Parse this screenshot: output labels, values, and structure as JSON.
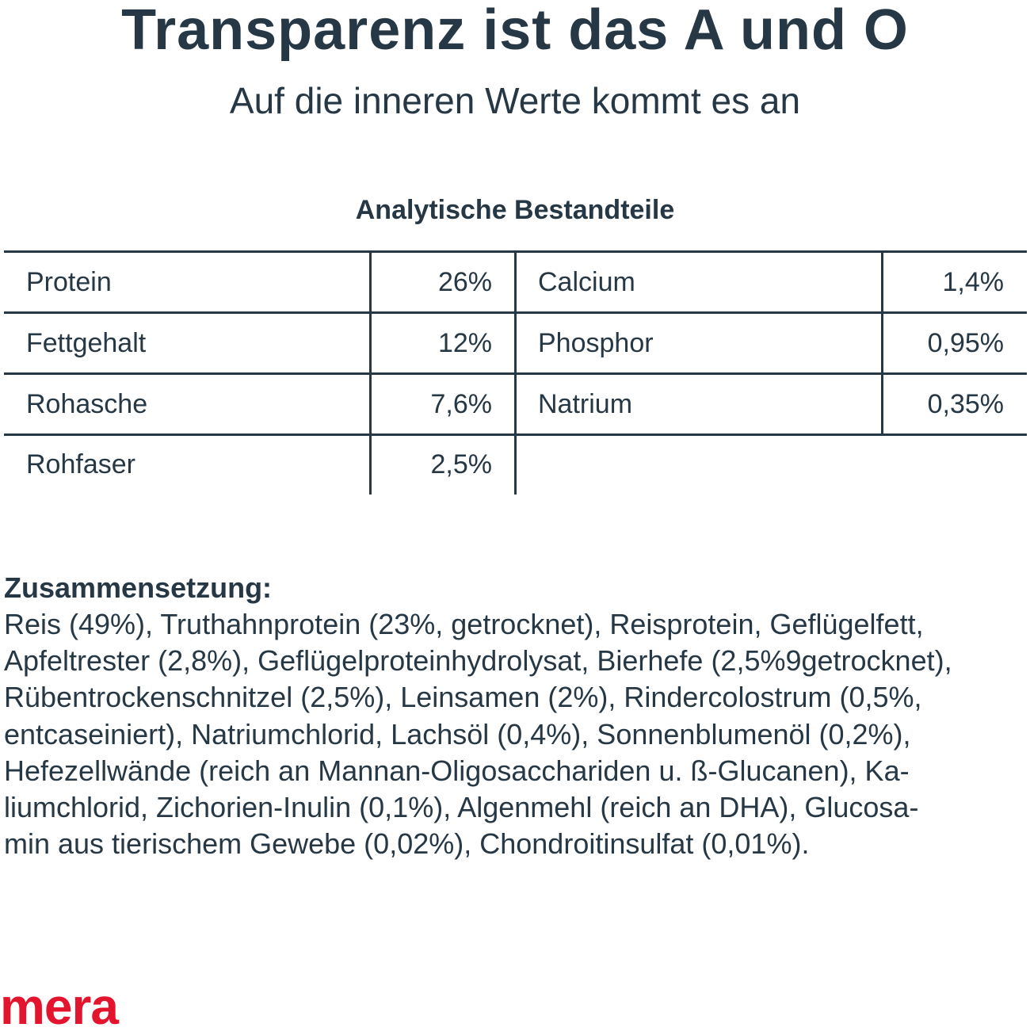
{
  "header": {
    "title": "Transparenz ist das A und O",
    "subtitle": "Auf die inneren Werte kommt es an"
  },
  "analysis": {
    "heading": "Analytische Bestandteile",
    "left": [
      {
        "label": "Protein",
        "value": "26%"
      },
      {
        "label": "Fettgehalt",
        "value": "12%"
      },
      {
        "label": "Rohasche",
        "value": "7,6%"
      },
      {
        "label": "Rohfaser",
        "value": "2,5%"
      }
    ],
    "right": [
      {
        "label": "Calcium",
        "value": "1,4%"
      },
      {
        "label": "Phosphor",
        "value": "0,95%"
      },
      {
        "label": "Natrium",
        "value": "0,35%"
      }
    ]
  },
  "composition": {
    "title": "Zusammensetzung:",
    "lines": [
      "Reis (49%), Truthahnprotein (23%, getrocknet), Reisprotein, Geflügelfett,",
      "Apfeltrester (2,8%), Geflügelproteinhydrolysat, Bierhefe (2,5%9getrocknet),",
      "Rübentrockenschnitzel (2,5%), Leinsamen (2%), Rindercolostrum (0,5%,",
      "entcaseiniert),  Natriumchlorid, Lachsöl (0,4%), Sonnenblumenöl (0,2%),",
      "Hefezellwände (reich an Mannan-Oligosacchariden u. ß-Glucanen), Ka-",
      "liumchlorid, Zichorien-Inulin (0,1%), Algenmehl (reich an DHA), Glucosa-",
      "min aus tierischem Gewebe (0,02%), Chondroitinsulfat (0,01%)."
    ]
  },
  "brand": {
    "logo": "mera",
    "color": "#e3142d"
  },
  "colors": {
    "text": "#263845"
  }
}
